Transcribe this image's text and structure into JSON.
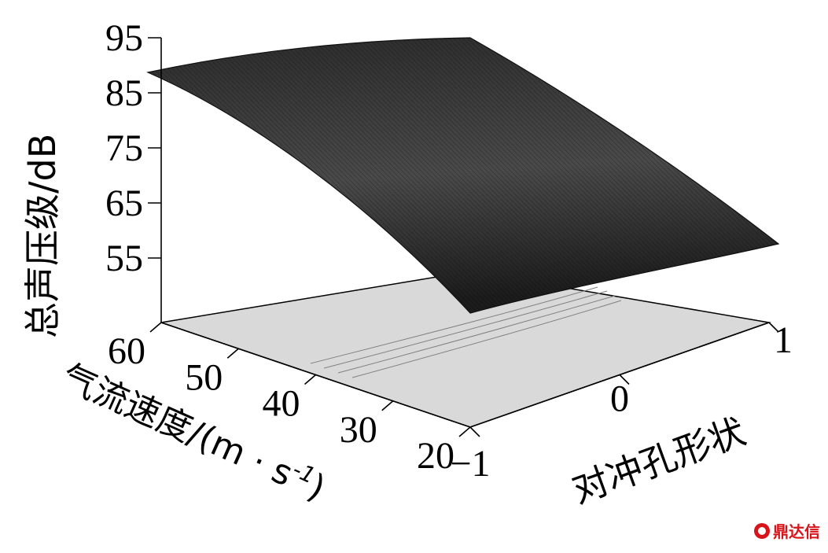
{
  "chart_data": {
    "type": "surface",
    "zlabel": "总声压级/dB",
    "xlabel": "气流速度/(m · s",
    "xlabel_sup": "-1",
    "xlabel_close": ")",
    "ylabel": "对冲孔形状",
    "z_ticks": [
      "95",
      "85",
      "75",
      "65",
      "55"
    ],
    "z_tick_values": [
      95,
      85,
      75,
      65,
      55
    ],
    "x_ticks": [
      "60",
      "50",
      "40",
      "30",
      "20"
    ],
    "x_tick_values": [
      60,
      50,
      40,
      30,
      20
    ],
    "y_ticks": [
      "−1",
      "0",
      "1"
    ],
    "y_tick_values": [
      -1,
      0,
      1
    ],
    "zlim": [
      45,
      95
    ],
    "xlim": [
      20,
      60
    ],
    "ylim": [
      -1,
      1
    ],
    "corner_values": [
      {
        "velocity": 60,
        "shape": -1,
        "spl": 87
      },
      {
        "velocity": 60,
        "shape": 1,
        "spl": 95
      },
      {
        "velocity": 20,
        "shape": 1,
        "spl": 58
      },
      {
        "velocity": 20,
        "shape": -1,
        "spl": 51
      }
    ],
    "surface_color": "#3a3a3a",
    "floor_color": "#d9d9d9"
  },
  "watermark": {
    "text": "鼎达信",
    "color": "#d7141a"
  }
}
